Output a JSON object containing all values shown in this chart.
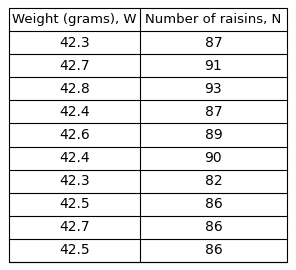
{
  "col1_header": "Weight (grams), W",
  "col2_header": "Number of raisins, N",
  "col1_values": [
    "42.3",
    "42.7",
    "42.8",
    "42.4",
    "42.6",
    "42.4",
    "42.3",
    "42.5",
    "42.7",
    "42.5"
  ],
  "col2_values": [
    "87",
    "91",
    "93",
    "87",
    "89",
    "90",
    "82",
    "86",
    "86",
    "86"
  ],
  "bg_color": "#ffffff",
  "border_color": "#000000",
  "header_fontsize": 9.5,
  "cell_fontsize": 10,
  "fig_width": 2.96,
  "fig_height": 2.7
}
